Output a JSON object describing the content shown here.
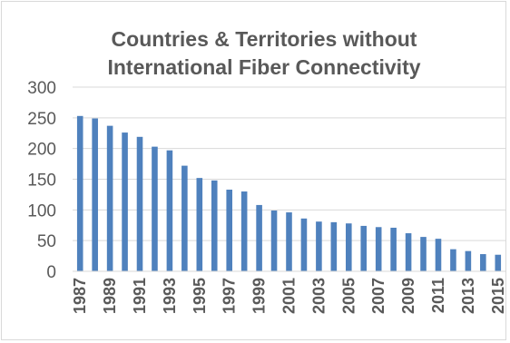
{
  "chart_data": {
    "type": "bar",
    "title": [
      "Countries & Territories without",
      "International Fiber Connectivity"
    ],
    "xlabel": "",
    "ylabel": "",
    "ylim": [
      0,
      300
    ],
    "yticks": [
      0,
      50,
      100,
      150,
      200,
      250,
      300
    ],
    "grid": true,
    "legend": "none",
    "bar_color": "#4f81bd",
    "categories": [
      "1987",
      "1988",
      "1989",
      "1990",
      "1991",
      "1992",
      "1993",
      "1994",
      "1995",
      "1996",
      "1997",
      "1998",
      "1999",
      "2000",
      "2001",
      "2002",
      "2003",
      "2004",
      "2005",
      "2006",
      "2007",
      "2008",
      "2009",
      "2010",
      "2011",
      "2012",
      "2013",
      "2014",
      "2015"
    ],
    "tick_labels_shown": [
      "1987",
      "1989",
      "1991",
      "1993",
      "1995",
      "1997",
      "1999",
      "2001",
      "2003",
      "2005",
      "2007",
      "2009",
      "2011",
      "2013",
      "2015"
    ],
    "values": [
      253,
      249,
      237,
      226,
      219,
      203,
      197,
      172,
      152,
      148,
      133,
      130,
      108,
      99,
      96,
      86,
      81,
      80,
      78,
      74,
      72,
      71,
      62,
      56,
      53,
      36,
      33,
      28,
      27
    ]
  }
}
